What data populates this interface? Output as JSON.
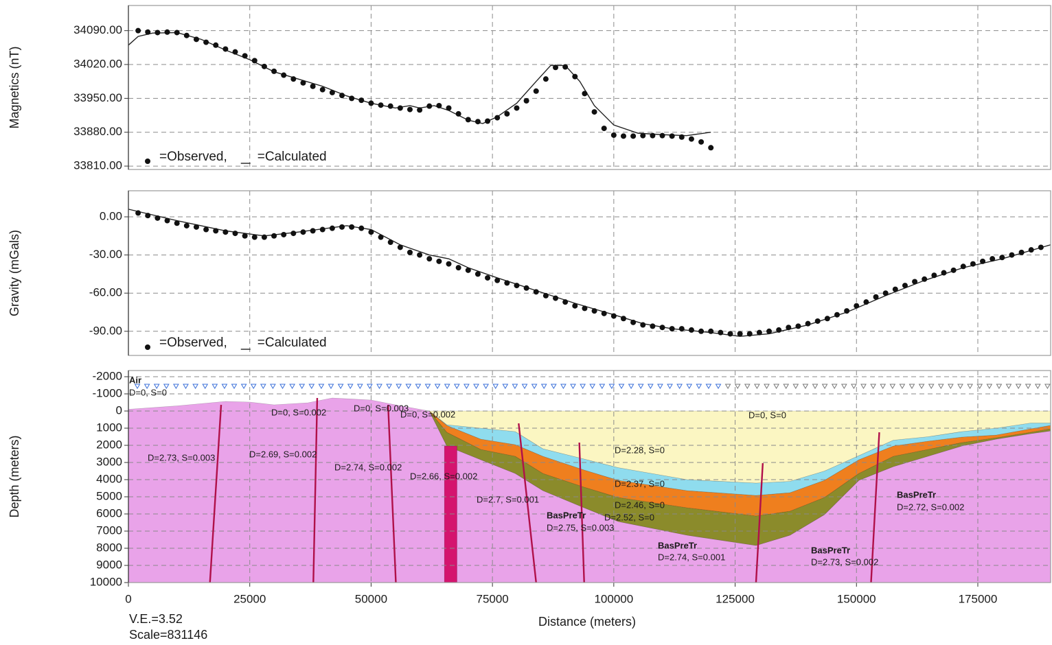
{
  "chart_data": [
    {
      "type": "scatter",
      "y_label": "Magnetics (nT)",
      "xlim": [
        0,
        190000
      ],
      "xticks": [
        0,
        25000,
        50000,
        75000,
        100000,
        125000,
        150000,
        175000
      ],
      "ylim": [
        33803,
        34142
      ],
      "yticks": [
        {
          "value": 33810,
          "label": "33810.00"
        },
        {
          "value": 33880,
          "label": "33880.00"
        },
        {
          "value": 33950,
          "label": "33950.00"
        },
        {
          "value": 34020,
          "label": "34020.00"
        },
        {
          "value": 34090,
          "label": "34090.00"
        }
      ],
      "grid": true,
      "series": [
        {
          "name": "=Observed,",
          "mode": "markers",
          "color": "#111111",
          "x": [
            2000,
            4000,
            6000,
            8000,
            10000,
            12000,
            14000,
            16000,
            18000,
            20000,
            22000,
            24000,
            26000,
            28000,
            30000,
            32000,
            34000,
            36000,
            38000,
            40000,
            42000,
            44000,
            46000,
            48000,
            50000,
            52000,
            54000,
            56000,
            58000,
            60000,
            62000,
            64000,
            66000,
            68000,
            70000,
            72000,
            74000,
            76000,
            78000,
            80000,
            82000,
            84000,
            86000,
            88000,
            90000,
            92000,
            94000,
            96000,
            98000,
            100000,
            102000,
            104000,
            106000,
            108000,
            110000,
            112000,
            114000,
            116000,
            118000,
            120000
          ],
          "values": [
            34090,
            34087,
            34086,
            34087,
            34086,
            34080,
            34072,
            34066,
            34060,
            34052,
            34046,
            34038,
            34028,
            34016,
            34006,
            33998,
            33990,
            33982,
            33975,
            33968,
            33962,
            33956,
            33950,
            33946,
            33940,
            33936,
            33934,
            33930,
            33927,
            33926,
            33934,
            33935,
            33930,
            33918,
            33906,
            33902,
            33903,
            33910,
            33918,
            33930,
            33945,
            33965,
            33990,
            34014,
            34015,
            33995,
            33960,
            33922,
            33888,
            33874,
            33872,
            33872,
            33873,
            33873,
            33873,
            33872,
            33870,
            33866,
            33860,
            33848
          ]
        },
        {
          "name": "=Calculated",
          "mode": "line",
          "color": "#222222",
          "x": [
            0,
            2000,
            5000,
            10000,
            15000,
            20000,
            25000,
            30000,
            35000,
            40000,
            45000,
            50000,
            55000,
            58000,
            60000,
            63000,
            66000,
            70000,
            73000,
            76000,
            80000,
            84000,
            87000,
            90000,
            93000,
            96000,
            100000,
            105000,
            110000,
            115000,
            120000
          ],
          "values": [
            34060,
            34078,
            34085,
            34086,
            34072,
            34050,
            34030,
            34005,
            33990,
            33975,
            33955,
            33940,
            33930,
            33935,
            33930,
            33935,
            33925,
            33905,
            33898,
            33912,
            33940,
            33985,
            34018,
            34018,
            33985,
            33935,
            33895,
            33878,
            33875,
            33873,
            33880
          ]
        }
      ]
    },
    {
      "type": "scatter",
      "y_label": "Gravity (mGals)",
      "xlim": [
        0,
        190000
      ],
      "xticks": [
        0,
        25000,
        50000,
        75000,
        100000,
        125000,
        150000,
        175000
      ],
      "ylim": [
        -109,
        20.5
      ],
      "yticks": [
        {
          "value": -90,
          "label": "-90.00"
        },
        {
          "value": -60,
          "label": "-60.00"
        },
        {
          "value": -30,
          "label": "-30.00"
        },
        {
          "value": 0,
          "label": "0.00"
        }
      ],
      "grid": true,
      "series": [
        {
          "name": "=Observed,",
          "mode": "markers",
          "color": "#111111",
          "x": [
            2000,
            4000,
            6000,
            8000,
            10000,
            12000,
            14000,
            16000,
            18000,
            20000,
            22000,
            24000,
            26000,
            28000,
            30000,
            32000,
            34000,
            36000,
            38000,
            40000,
            42000,
            44000,
            46000,
            48000,
            50000,
            52000,
            54000,
            56000,
            58000,
            60000,
            62000,
            64000,
            66000,
            68000,
            70000,
            72000,
            74000,
            76000,
            78000,
            80000,
            82000,
            84000,
            86000,
            88000,
            90000,
            92000,
            94000,
            96000,
            98000,
            100000,
            102000,
            104000,
            106000,
            108000,
            110000,
            112000,
            114000,
            116000,
            118000,
            120000,
            122000,
            124000,
            126000,
            128000,
            130000,
            132000,
            134000,
            136000,
            138000,
            140000,
            142000,
            144000,
            146000,
            148000,
            150000,
            152000,
            154000,
            156000,
            158000,
            160000,
            162000,
            164000,
            166000,
            168000,
            170000,
            172000,
            174000,
            176000,
            178000,
            180000,
            182000,
            184000,
            186000,
            188000
          ],
          "values": [
            3,
            1,
            -1,
            -3,
            -5,
            -7,
            -8,
            -10,
            -11,
            -12,
            -13,
            -15,
            -16,
            -16,
            -15,
            -14,
            -13,
            -12,
            -11,
            -10,
            -9,
            -8,
            -8,
            -9,
            -12,
            -16,
            -20,
            -24,
            -28,
            -30,
            -33,
            -35,
            -37,
            -40,
            -42,
            -45,
            -48,
            -50,
            -52,
            -54,
            -56,
            -59,
            -62,
            -64,
            -67,
            -70,
            -72,
            -74,
            -76,
            -78,
            -80,
            -83,
            -85,
            -86,
            -87,
            -88,
            -88,
            -89,
            -90,
            -90,
            -91,
            -92,
            -92,
            -92,
            -91,
            -90,
            -89,
            -87,
            -86,
            -84,
            -82,
            -80,
            -77,
            -74,
            -70,
            -67,
            -63,
            -60,
            -57,
            -54,
            -51,
            -49,
            -46,
            -44,
            -42,
            -39,
            -37,
            -35,
            -33,
            -32,
            -30,
            -28,
            -26,
            -24
          ]
        },
        {
          "name": "=Calculated",
          "mode": "line",
          "color": "#222222",
          "x": [
            0,
            10000,
            20000,
            28000,
            35000,
            45000,
            50000,
            56000,
            62000,
            66000,
            70000,
            76000,
            84000,
            92000,
            100000,
            106000,
            112000,
            120000,
            126000,
            132000,
            140000,
            148000,
            156000,
            164000,
            172000,
            180000,
            190000
          ],
          "values": [
            6,
            -3,
            -11,
            -15,
            -12,
            -7,
            -10,
            -22,
            -30,
            -33,
            -40,
            -48,
            -58,
            -68,
            -77,
            -84,
            -88,
            -91,
            -94,
            -92,
            -85,
            -75,
            -62,
            -50,
            -40,
            -33,
            -22
          ]
        }
      ]
    },
    {
      "type": "section",
      "y_label": "Depth (meters)",
      "x_label": "Distance (meters)",
      "xlim": [
        0,
        190000
      ],
      "xticks": [
        0,
        25000,
        50000,
        75000,
        100000,
        125000,
        150000,
        175000
      ],
      "ylim": [
        -2360,
        10000
      ],
      "y_inverted": true,
      "yticks": [
        -2000,
        -1000,
        0,
        1000,
        2000,
        3000,
        4000,
        5000,
        6000,
        7000,
        8000,
        9000,
        10000
      ],
      "grid": true,
      "layers": [
        {
          "color": "#e9a3e9",
          "x": [
            0,
            10000,
            20000,
            25000,
            30000,
            37000,
            42000,
            50000,
            55000,
            60000,
            62000,
            65600,
            72600,
            79700,
            85400,
            93900,
            100900,
            115100,
            129300,
            136300,
            143400,
            150500,
            157600,
            164700,
            171700,
            178800,
            185900,
            190000
          ],
          "top": [
            -100,
            -300,
            -560,
            -520,
            -360,
            -480,
            -760,
            -640,
            -360,
            -100,
            0,
            2040,
            2840,
            3640,
            4640,
            5640,
            6440,
            7240,
            7840,
            7240,
            6040,
            4040,
            3240,
            2640,
            2040,
            1640,
            1320,
            1160
          ],
          "bottom": [
            10000,
            10000,
            10000,
            10000,
            10000,
            10000,
            10000,
            10000,
            10000,
            10000,
            10000,
            10000,
            10000,
            10000,
            10000,
            10000,
            10000,
            10000,
            10000,
            10000,
            10000,
            10000,
            10000,
            10000,
            10000,
            10000,
            10000,
            10000
          ]
        },
        {
          "color": "#8b8b2b",
          "x": [
            62000,
            65600,
            72600,
            79700,
            85400,
            93900,
            100900,
            115100,
            129300,
            136300,
            143400,
            150500,
            157600,
            164700,
            171700,
            178800,
            185900,
            190000
          ],
          "top": [
            0,
            1240,
            2240,
            2640,
            3640,
            4440,
            5040,
            5640,
            6120,
            5840,
            5040,
            3640,
            2640,
            2240,
            1840,
            1560,
            1240,
            1040
          ],
          "bottom": [
            0,
            2040,
            2840,
            3640,
            4640,
            5640,
            6440,
            7240,
            7840,
            7240,
            6040,
            4040,
            3240,
            2640,
            2040,
            1640,
            1320,
            1160
          ]
        },
        {
          "color": "#ef7f1e",
          "x": [
            62000,
            65600,
            72600,
            79700,
            85400,
            93900,
            100900,
            115100,
            129300,
            136300,
            143400,
            150500,
            157600,
            164700,
            171700,
            178800,
            185900,
            190000
          ],
          "top": [
            0,
            840,
            1640,
            1960,
            2640,
            3440,
            4040,
            4640,
            4920,
            4760,
            4040,
            2840,
            2040,
            1760,
            1520,
            1400,
            1040,
            840
          ],
          "bottom": [
            0,
            1240,
            2240,
            2640,
            3640,
            4440,
            5040,
            5640,
            6120,
            5840,
            5040,
            3640,
            2640,
            2240,
            1840,
            1560,
            1240,
            1040
          ]
        },
        {
          "color": "#8fdcee",
          "x": [
            62000,
            65600,
            72600,
            79700,
            85400,
            93900,
            100900,
            115100,
            129300,
            136300,
            143400,
            150500,
            157600,
            164700,
            171700,
            178800,
            185900,
            190000
          ],
          "top": [
            0,
            800,
            1000,
            1200,
            2200,
            2800,
            3300,
            4000,
            4200,
            4100,
            3500,
            2600,
            1700,
            1500,
            1200,
            1000,
            700,
            700
          ],
          "bottom": [
            0,
            840,
            1640,
            1960,
            2640,
            3440,
            4040,
            4640,
            4920,
            4760,
            4040,
            2840,
            2040,
            1760,
            1520,
            1400,
            1040,
            840
          ]
        },
        {
          "color": "#fbf6c2",
          "x": [
            62000,
            65600,
            72600,
            79700,
            85400,
            93900,
            100900,
            115100,
            129300,
            136300,
            143400,
            150500,
            157600,
            164700,
            171700,
            178800,
            185900,
            190000
          ],
          "top": [
            0,
            0,
            0,
            0,
            0,
            0,
            0,
            0,
            0,
            0,
            0,
            0,
            0,
            0,
            0,
            0,
            0,
            0
          ],
          "bottom": [
            0,
            800,
            1000,
            1200,
            2200,
            2800,
            3300,
            4000,
            4200,
            4100,
            3500,
            2600,
            1700,
            1500,
            1200,
            1000,
            700,
            700
          ]
        },
        {
          "color": "#d4146e",
          "x": [
            65100,
            67700
          ],
          "top": [
            2040,
            2040
          ],
          "bottom": [
            10000,
            10000
          ]
        }
      ],
      "fault_color": "#b0104a",
      "faults": [
        {
          "x": [
            19100,
            16800
          ],
          "depth": [
            -360,
            10000
          ]
        },
        {
          "x": [
            38900,
            38100
          ],
          "depth": [
            -760,
            10000
          ]
        },
        {
          "x": [
            53500,
            55100
          ],
          "depth": [
            -360,
            10000
          ]
        },
        {
          "x": [
            80400,
            84000
          ],
          "depth": [
            720,
            10000
          ]
        },
        {
          "x": [
            92900,
            93900
          ],
          "depth": [
            1840,
            10000
          ]
        },
        {
          "x": [
            130700,
            129300
          ],
          "depth": [
            3040,
            10000
          ]
        },
        {
          "x": [
            154700,
            153000
          ],
          "depth": [
            1240,
            10000
          ]
        }
      ],
      "annotations": [
        "Air",
        "D=0, S=0",
        "D=0, S=0.002",
        "D=0, S=0.003",
        "D=0, S=0.002",
        "D=0, S=0",
        "D=2.73, S=0.003",
        "D=2.69, S=0.002",
        "D=2.74, S=0.002",
        "D=2.66, S=0.002",
        "D=2.7, S=0.001",
        "BasPreTr",
        "D=2.75, S=0.003",
        "D=2.28, S=0",
        "D=2.37, S=0",
        "D=2.46, S=0",
        "D=2.52, S=0",
        "BasPreTr",
        "D=2.74, S=0.001",
        "BasPreTr",
        "D=2.72, S=0.002",
        "BasPreTr",
        "D=2.73, S=0.002"
      ],
      "footnotes": [
        "V.E.=3.52",
        "Scale=831146"
      ]
    }
  ]
}
